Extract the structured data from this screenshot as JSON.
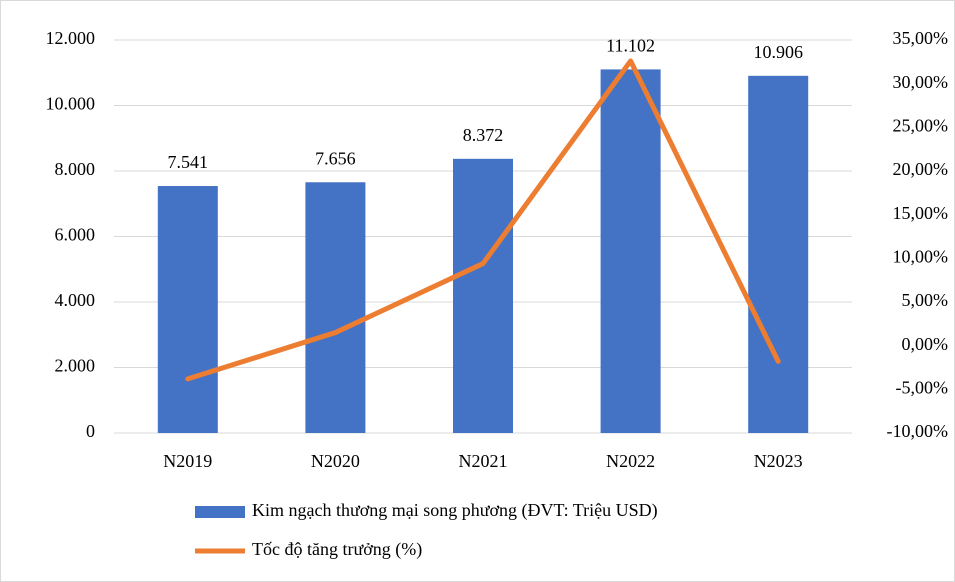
{
  "chart_data": {
    "type": "bar",
    "categories": [
      "N2019",
      "N2020",
      "N2021",
      "N2022",
      "N2023"
    ],
    "series": [
      {
        "name": "Kim ngạch thương mại song phương (ĐVT: Triệu USD)",
        "type": "bar",
        "color": "#4472c4",
        "values": [
          7541,
          7656,
          8372,
          11102,
          10906
        ],
        "value_labels": [
          "7.541",
          "7.656",
          "8.372",
          "11.102",
          "10.906"
        ]
      },
      {
        "name": "Tốc độ tăng trưởng (%)",
        "type": "line",
        "axis": "y2",
        "color": "#ed7d31",
        "values": [
          -3.8,
          1.5,
          9.4,
          32.6,
          -1.8
        ]
      }
    ],
    "ylim": [
      0,
      12000
    ],
    "yticks": [
      0,
      {
        "value": 2000,
        "label": "2.000"
      },
      {
        "value": 4000,
        "label": "4.000"
      },
      {
        "value": 6000,
        "label": "6.000"
      },
      {
        "value": 8000,
        "label": "8.000"
      },
      {
        "value": 10000,
        "label": "10.000"
      },
      {
        "value": 12000,
        "label": "12.000"
      }
    ],
    "y2lim": [
      -10,
      35
    ],
    "y2ticks": [
      {
        "value": -10,
        "label": "-10,00%"
      },
      {
        "value": -5,
        "label": "-5,00%"
      },
      {
        "value": 0,
        "label": "0,00%"
      },
      {
        "value": 5,
        "label": "5,00%"
      },
      {
        "value": 10,
        "label": "10,00%"
      },
      {
        "value": 15,
        "label": "15,00%"
      },
      {
        "value": 20,
        "label": "20,00%"
      },
      {
        "value": 25,
        "label": "25,00%"
      },
      {
        "value": 30,
        "label": "30,00%"
      },
      {
        "value": 35,
        "label": "35,00%"
      }
    ],
    "grid": true
  }
}
